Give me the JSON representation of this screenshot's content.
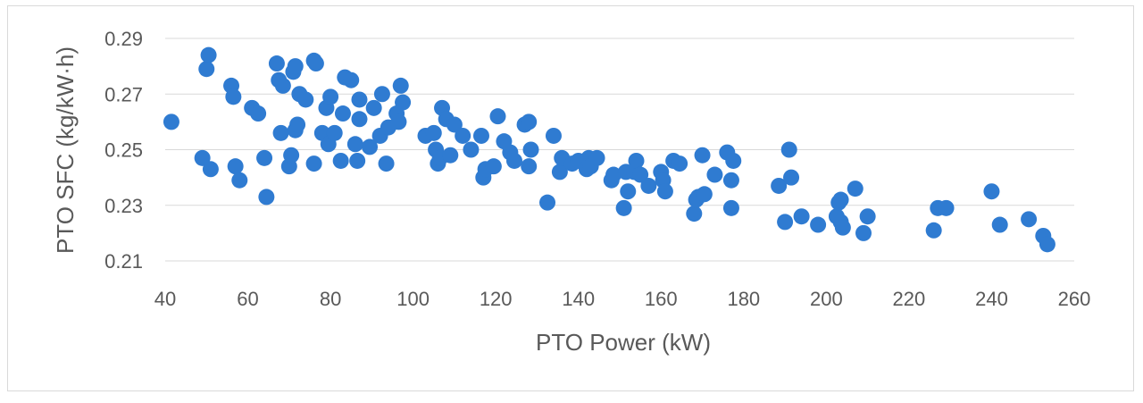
{
  "chart_data": {
    "type": "scatter",
    "xlabel": "PTO Power (kW)",
    "ylabel": "PTO SFC (kg/kW·h)",
    "xlim": [
      40,
      260
    ],
    "ylim": [
      0.21,
      0.29
    ],
    "x_ticks": [
      "40",
      "60",
      "80",
      "100",
      "120",
      "140",
      "160",
      "180",
      "200",
      "220",
      "240",
      "260"
    ],
    "y_ticks": [
      "0.21",
      "0.23",
      "0.25",
      "0.27",
      "0.29"
    ],
    "grid": "horizontal",
    "marker_color": "#2f7bd1",
    "series": [
      {
        "points": [
          [
            41.5,
            0.26
          ],
          [
            49,
            0.247
          ],
          [
            50,
            0.279
          ],
          [
            50.5,
            0.284
          ],
          [
            51,
            0.243
          ],
          [
            56,
            0.273
          ],
          [
            56.5,
            0.269
          ],
          [
            57,
            0.244
          ],
          [
            58,
            0.239
          ],
          [
            61,
            0.265
          ],
          [
            62.5,
            0.263
          ],
          [
            64,
            0.247
          ],
          [
            64.5,
            0.233
          ],
          [
            67,
            0.281
          ],
          [
            67.5,
            0.275
          ],
          [
            68,
            0.256
          ],
          [
            68.5,
            0.273
          ],
          [
            70,
            0.244
          ],
          [
            70.5,
            0.248
          ],
          [
            71,
            0.278
          ],
          [
            71.5,
            0.28
          ],
          [
            71.5,
            0.257
          ],
          [
            72,
            0.259
          ],
          [
            72.5,
            0.27
          ],
          [
            74,
            0.268
          ],
          [
            76,
            0.282
          ],
          [
            76.5,
            0.281
          ],
          [
            76,
            0.245
          ],
          [
            78,
            0.256
          ],
          [
            79,
            0.265
          ],
          [
            79.5,
            0.252
          ],
          [
            80,
            0.269
          ],
          [
            81,
            0.256
          ],
          [
            82.5,
            0.246
          ],
          [
            83,
            0.263
          ],
          [
            83.5,
            0.276
          ],
          [
            85,
            0.275
          ],
          [
            86,
            0.252
          ],
          [
            86.5,
            0.246
          ],
          [
            87,
            0.268
          ],
          [
            87,
            0.261
          ],
          [
            89.5,
            0.251
          ],
          [
            90.5,
            0.265
          ],
          [
            92,
            0.255
          ],
          [
            92.5,
            0.27
          ],
          [
            93.5,
            0.245
          ],
          [
            94,
            0.258
          ],
          [
            96,
            0.263
          ],
          [
            96.5,
            0.26
          ],
          [
            97,
            0.273
          ],
          [
            97.5,
            0.267
          ],
          [
            103,
            0.255
          ],
          [
            105,
            0.256
          ],
          [
            105.5,
            0.25
          ],
          [
            106,
            0.245
          ],
          [
            106.5,
            0.247
          ],
          [
            107,
            0.265
          ],
          [
            108,
            0.261
          ],
          [
            109,
            0.248
          ],
          [
            110,
            0.259
          ],
          [
            112,
            0.255
          ],
          [
            114,
            0.25
          ],
          [
            116.5,
            0.255
          ],
          [
            117,
            0.24
          ],
          [
            117.5,
            0.243
          ],
          [
            119.5,
            0.244
          ],
          [
            120.5,
            0.262
          ],
          [
            122,
            0.253
          ],
          [
            123.5,
            0.249
          ],
          [
            124.5,
            0.246
          ],
          [
            127,
            0.259
          ],
          [
            128,
            0.26
          ],
          [
            128,
            0.244
          ],
          [
            128.5,
            0.25
          ],
          [
            132.5,
            0.231
          ],
          [
            134,
            0.255
          ],
          [
            135.5,
            0.242
          ],
          [
            136,
            0.247
          ],
          [
            138.5,
            0.245
          ],
          [
            140,
            0.246
          ],
          [
            142,
            0.243
          ],
          [
            142.5,
            0.247
          ],
          [
            143,
            0.244
          ],
          [
            144.5,
            0.247
          ],
          [
            148,
            0.239
          ],
          [
            148.5,
            0.241
          ],
          [
            151,
            0.229
          ],
          [
            151.5,
            0.242
          ],
          [
            152,
            0.235
          ],
          [
            153.5,
            0.242
          ],
          [
            154,
            0.246
          ],
          [
            155,
            0.241
          ],
          [
            157,
            0.237
          ],
          [
            160,
            0.242
          ],
          [
            160.5,
            0.239
          ],
          [
            161,
            0.235
          ],
          [
            163,
            0.246
          ],
          [
            164.5,
            0.245
          ],
          [
            168,
            0.227
          ],
          [
            168.5,
            0.232
          ],
          [
            169,
            0.233
          ],
          [
            170,
            0.248
          ],
          [
            170.5,
            0.234
          ],
          [
            173,
            0.241
          ],
          [
            176,
            0.249
          ],
          [
            177,
            0.239
          ],
          [
            177.5,
            0.246
          ],
          [
            177,
            0.229
          ],
          [
            188.5,
            0.237
          ],
          [
            190,
            0.224
          ],
          [
            191,
            0.25
          ],
          [
            191.5,
            0.24
          ],
          [
            194,
            0.226
          ],
          [
            198,
            0.223
          ],
          [
            202.5,
            0.226
          ],
          [
            203,
            0.231
          ],
          [
            203.5,
            0.232
          ],
          [
            203.5,
            0.224
          ],
          [
            204,
            0.222
          ],
          [
            207,
            0.236
          ],
          [
            209,
            0.22
          ],
          [
            210,
            0.226
          ],
          [
            226,
            0.221
          ],
          [
            227,
            0.229
          ],
          [
            229,
            0.229
          ],
          [
            240,
            0.235
          ],
          [
            242,
            0.223
          ],
          [
            249,
            0.225
          ],
          [
            252.5,
            0.219
          ],
          [
            253.5,
            0.216
          ]
        ]
      }
    ]
  }
}
